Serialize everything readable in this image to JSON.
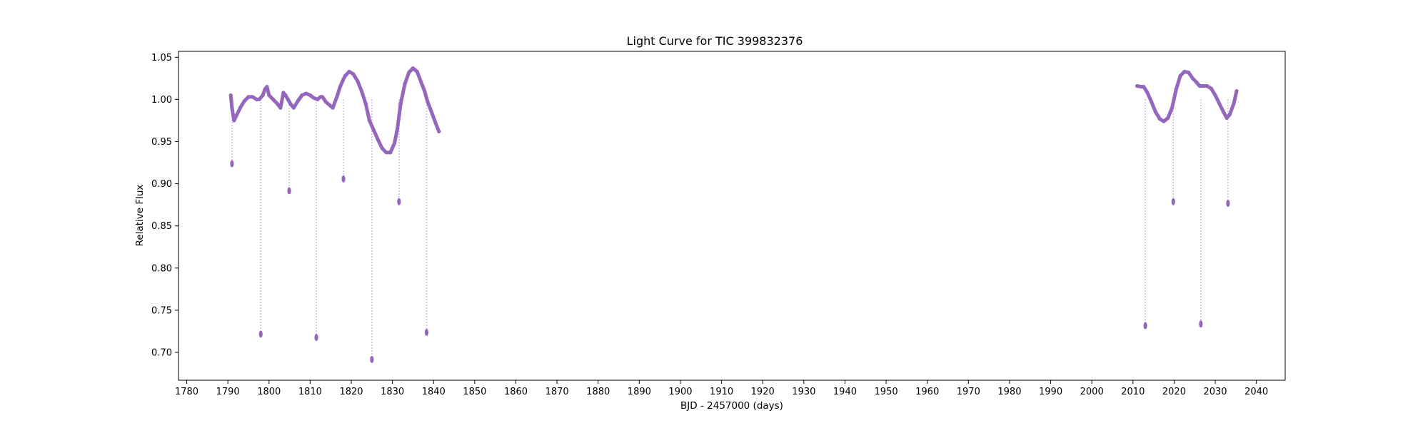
{
  "chart_data": {
    "type": "scatter",
    "title": "Light Curve for TIC 399832376",
    "xlabel": "BJD - 2457000 (days)",
    "ylabel": "Relative Flux",
    "xlim": [
      1778,
      2047
    ],
    "ylim": [
      0.667,
      1.057
    ],
    "xticks": [
      1780,
      1790,
      1800,
      1810,
      1820,
      1830,
      1840,
      1850,
      1860,
      1870,
      1880,
      1890,
      1900,
      1910,
      1920,
      1930,
      1940,
      1950,
      1960,
      1970,
      1980,
      1990,
      2000,
      2010,
      2020,
      2030,
      2040
    ],
    "yticks": [
      "0.70",
      "0.75",
      "0.80",
      "0.85",
      "0.90",
      "0.95",
      "1.00",
      "1.05"
    ],
    "grid": false,
    "legend": "none",
    "marker_color": "#9467bd",
    "series": [
      {
        "x": [
          1790.7,
          1791.0,
          1791.5,
          1792.0,
          1793.0,
          1794.0,
          1795.0,
          1796.0,
          1797.0,
          1797.6,
          1798.5,
          1799.0,
          1799.5,
          1800.0,
          1801.0,
          1802.0,
          1802.8,
          1803.5,
          1804.0,
          1804.6,
          1805.2,
          1806.0,
          1807.0,
          1808.0,
          1809.0,
          1810.0,
          1810.8,
          1811.8,
          1812.5,
          1813.0,
          1813.8,
          1815.5,
          1816.5,
          1817.3,
          1818.0,
          1818.5,
          1819.5,
          1820.5,
          1821.5,
          1822.5,
          1823.5,
          1824.4,
          1825.5,
          1826.5,
          1827.5,
          1828.5,
          1829.5,
          1830.5,
          1831.2,
          1832.0,
          1833.0,
          1834.0,
          1835.0,
          1836.0,
          1837.0,
          1837.8,
          1838.5,
          1839.5,
          1840.5,
          1841.3
        ],
        "y": [
          1.005,
          0.99,
          0.975,
          0.98,
          0.99,
          0.998,
          1.003,
          1.003,
          1.0,
          1.0,
          1.005,
          1.012,
          1.015,
          1.005,
          1.0,
          0.995,
          0.99,
          1.008,
          1.005,
          1.0,
          0.995,
          0.99,
          0.998,
          1.005,
          1.007,
          1.005,
          1.002,
          1.0,
          1.003,
          1.003,
          0.997,
          0.99,
          1.003,
          1.015,
          1.023,
          1.028,
          1.033,
          1.03,
          1.022,
          1.01,
          0.995,
          0.975,
          0.963,
          0.952,
          0.942,
          0.937,
          0.937,
          0.948,
          0.965,
          0.995,
          1.018,
          1.032,
          1.037,
          1.033,
          1.02,
          1.01,
          0.998,
          0.985,
          0.972,
          0.962
        ]
      },
      {
        "x": [
          2011.0,
          2012.0,
          2012.6,
          2013.5,
          2014.5,
          2015.5,
          2016.5,
          2017.5,
          2018.5,
          2019.5,
          2020.5,
          2021.5,
          2022.5,
          2023.5,
          2024.5,
          2025.5,
          2026.2,
          2027.0,
          2028.0,
          2029.0,
          2030.0,
          2031.0,
          2032.0,
          2032.8,
          2033.5,
          2034.5,
          2035.2
        ],
        "y": [
          1.016,
          1.015,
          1.015,
          1.008,
          0.997,
          0.985,
          0.977,
          0.974,
          0.978,
          0.99,
          1.012,
          1.028,
          1.033,
          1.032,
          1.025,
          1.02,
          1.016,
          1.016,
          1.016,
          1.013,
          1.005,
          0.995,
          0.985,
          0.978,
          0.982,
          0.995,
          1.01
        ]
      }
    ],
    "dips": [
      {
        "x": 1791.0,
        "y": 0.922
      },
      {
        "x": 1798.0,
        "y": 0.72
      },
      {
        "x": 1804.9,
        "y": 0.89
      },
      {
        "x": 1811.5,
        "y": 0.716
      },
      {
        "x": 1818.1,
        "y": 0.904
      },
      {
        "x": 1825.0,
        "y": 0.69
      },
      {
        "x": 1831.6,
        "y": 0.877
      },
      {
        "x": 1838.3,
        "y": 0.722
      },
      {
        "x": 2013.0,
        "y": 0.73
      },
      {
        "x": 2019.8,
        "y": 0.877
      },
      {
        "x": 2026.5,
        "y": 0.732
      },
      {
        "x": 2033.1,
        "y": 0.875
      }
    ]
  }
}
